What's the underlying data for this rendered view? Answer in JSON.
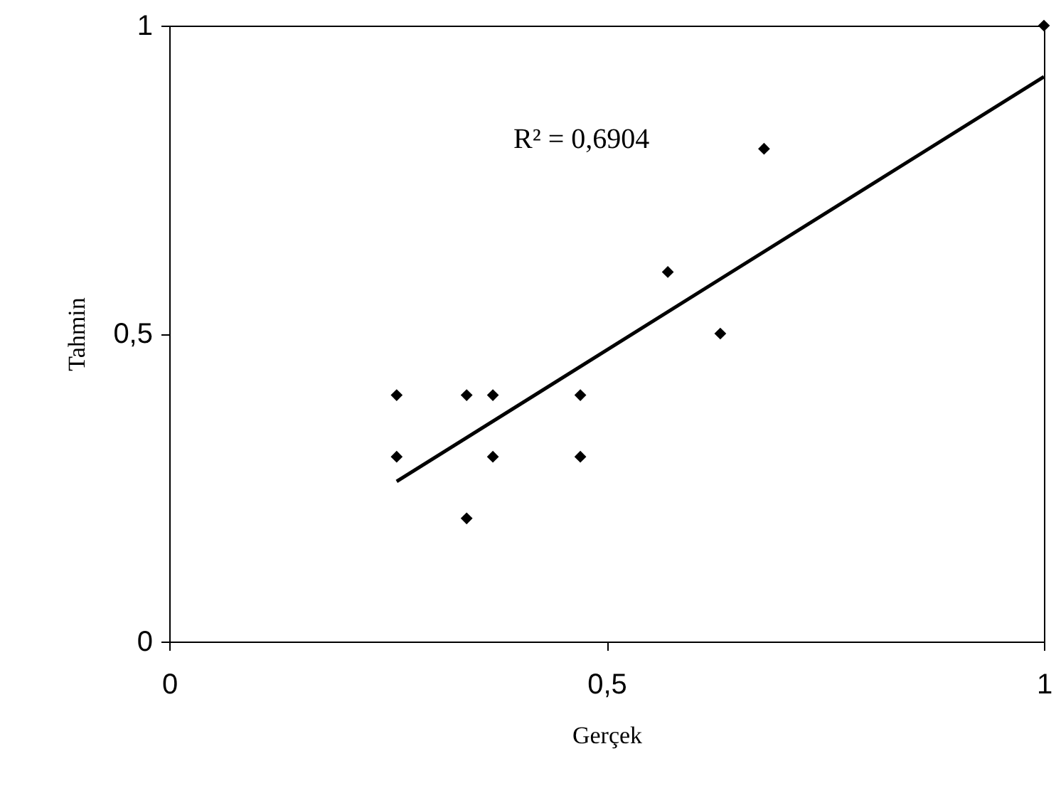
{
  "chart_data": {
    "type": "scatter",
    "xlabel": "Gerçek",
    "ylabel": "Tahmin",
    "x": [
      0.26,
      0.26,
      0.34,
      0.34,
      0.37,
      0.37,
      0.47,
      0.47,
      0.57,
      0.63,
      0.68,
      1.0
    ],
    "series": [
      {
        "color": "#000000",
        "marker": "diamond",
        "values": [
          0.4,
          0.3,
          0.4,
          0.2,
          0.4,
          0.3,
          0.4,
          0.3,
          0.6,
          0.5,
          0.8,
          1.0
        ]
      },
      {
        "type": "line",
        "color": "#000000",
        "line_style": "solid",
        "x": [
          0.26,
          1.0
        ],
        "values": [
          0.26,
          0.917
        ]
      }
    ],
    "annotations": [
      "R² = 0,6904"
    ],
    "xlim": [
      0,
      1
    ],
    "ylim": [
      0,
      1
    ],
    "xticks": [
      0,
      {
        "value": 0.5,
        "label": "0,5"
      },
      1
    ],
    "yticks": [
      0,
      {
        "value": 0.5,
        "label": "0,5"
      },
      1
    ]
  }
}
